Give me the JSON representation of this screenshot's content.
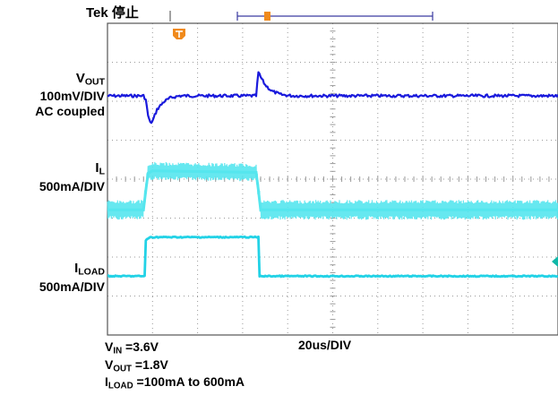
{
  "header": {
    "status_text": "Tek 停止"
  },
  "channels": {
    "vout": {
      "name_main": "V",
      "name_sub": "OUT",
      "scale": "100mV/DIV",
      "coupling": "AC coupled"
    },
    "il": {
      "name_main": "I",
      "name_sub": "L",
      "scale": "500mA/DIV"
    },
    "iload": {
      "name_main": "I",
      "name_sub": "LOAD",
      "scale": "500mA/DIV"
    }
  },
  "footer": {
    "timebase": "20us/DIV",
    "cond1_main": "V",
    "cond1_sub": "IN",
    "cond1_value": " =3.6V",
    "cond2_main": "V",
    "cond2_sub": "OUT",
    "cond2_value": " =1.8V",
    "cond3_main": "I",
    "cond3_sub": "LOAD",
    "cond3_value": " =100mA to 600mA"
  },
  "colors": {
    "vout": "#1a1adc",
    "il": "#55e6ee",
    "iload": "#22d2e6",
    "trigger": "#f08a1c",
    "grid": "#9a9a9a",
    "frame": "#555555"
  },
  "chart_data": {
    "type": "line",
    "title": "",
    "x_unit": "us",
    "x_range": [
      0,
      200
    ],
    "x_per_div": 20,
    "series": [
      {
        "name": "VOUT",
        "y_unit": "mV",
        "points": [
          [
            0,
            0
          ],
          [
            16,
            0
          ],
          [
            17,
            -10
          ],
          [
            18,
            -50
          ],
          [
            19,
            -70
          ],
          [
            20,
            -65
          ],
          [
            22,
            -35
          ],
          [
            25,
            -15
          ],
          [
            28,
            -5
          ],
          [
            32,
            0
          ],
          [
            66,
            0
          ],
          [
            67,
            60
          ],
          [
            68,
            48
          ],
          [
            70,
            28
          ],
          [
            73,
            12
          ],
          [
            77,
            3
          ],
          [
            82,
            0
          ],
          [
            200,
            0
          ]
        ]
      },
      {
        "name": "IL",
        "y_unit": "mA",
        "points": [
          [
            0,
            100
          ],
          [
            16,
            100
          ],
          [
            17,
            350
          ],
          [
            18,
            570
          ],
          [
            20,
            600
          ],
          [
            66,
            580
          ],
          [
            67,
            350
          ],
          [
            68,
            100
          ],
          [
            200,
            100
          ]
        ]
      },
      {
        "name": "ILOAD",
        "y_unit": "mA",
        "points": [
          [
            0,
            100
          ],
          [
            16.5,
            100
          ],
          [
            17,
            560
          ],
          [
            19,
            600
          ],
          [
            67,
            600
          ],
          [
            67.5,
            100
          ],
          [
            200,
            100
          ]
        ]
      }
    ]
  }
}
